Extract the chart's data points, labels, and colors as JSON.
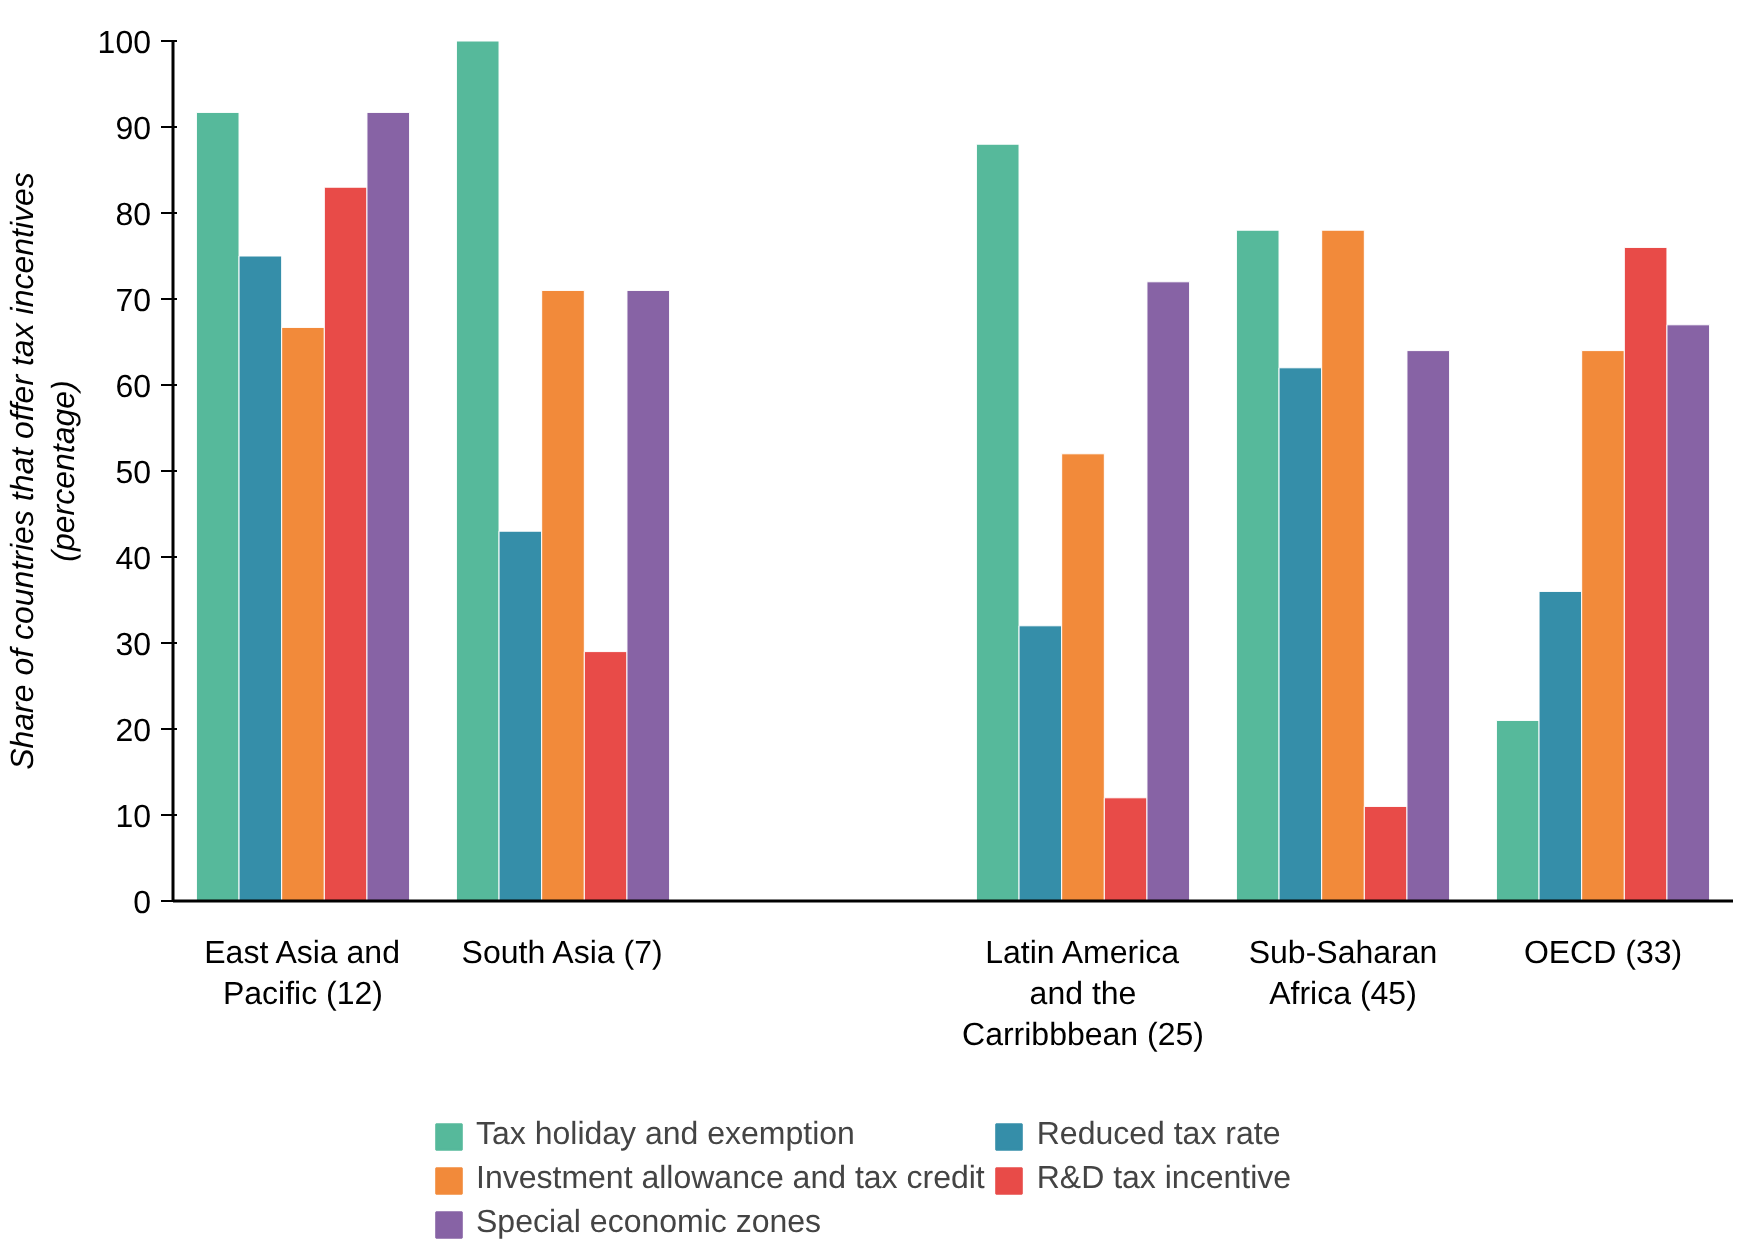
{
  "chart_data": {
    "type": "bar",
    "ylabel": "Share of countries that offer tax incentives\n(percentage)",
    "categories": [
      "East Asia and Pacific (12)",
      "South Asia (7)",
      null,
      "Latin America and the Carribbbean (25)",
      "Sub-Saharan Africa (45)",
      "OECD (33)"
    ],
    "series": [
      {
        "name": "Tax holiday and exemption",
        "color": "#56b99b",
        "values": [
          91.7,
          100,
          null,
          88,
          78,
          21
        ]
      },
      {
        "name": "Reduced tax rate",
        "color": "#358ea9",
        "values": [
          75,
          43,
          null,
          32,
          62,
          36
        ]
      },
      {
        "name": "Investment allowance and tax credit",
        "color": "#f28a3a",
        "values": [
          66.7,
          71,
          null,
          52,
          78,
          64
        ]
      },
      {
        "name": "R&D tax incentive",
        "color": "#e84b48",
        "values": [
          83,
          29,
          null,
          12,
          11,
          76
        ]
      },
      {
        "name": "Special economic zones",
        "color": "#8763a5",
        "values": [
          91.7,
          71,
          null,
          72,
          64,
          67
        ]
      }
    ],
    "ylim": [
      0,
      100
    ],
    "yticks": [
      0,
      10,
      20,
      30,
      40,
      50,
      60,
      70,
      80,
      90,
      100
    ],
    "grid": false,
    "legend": "bottom"
  }
}
